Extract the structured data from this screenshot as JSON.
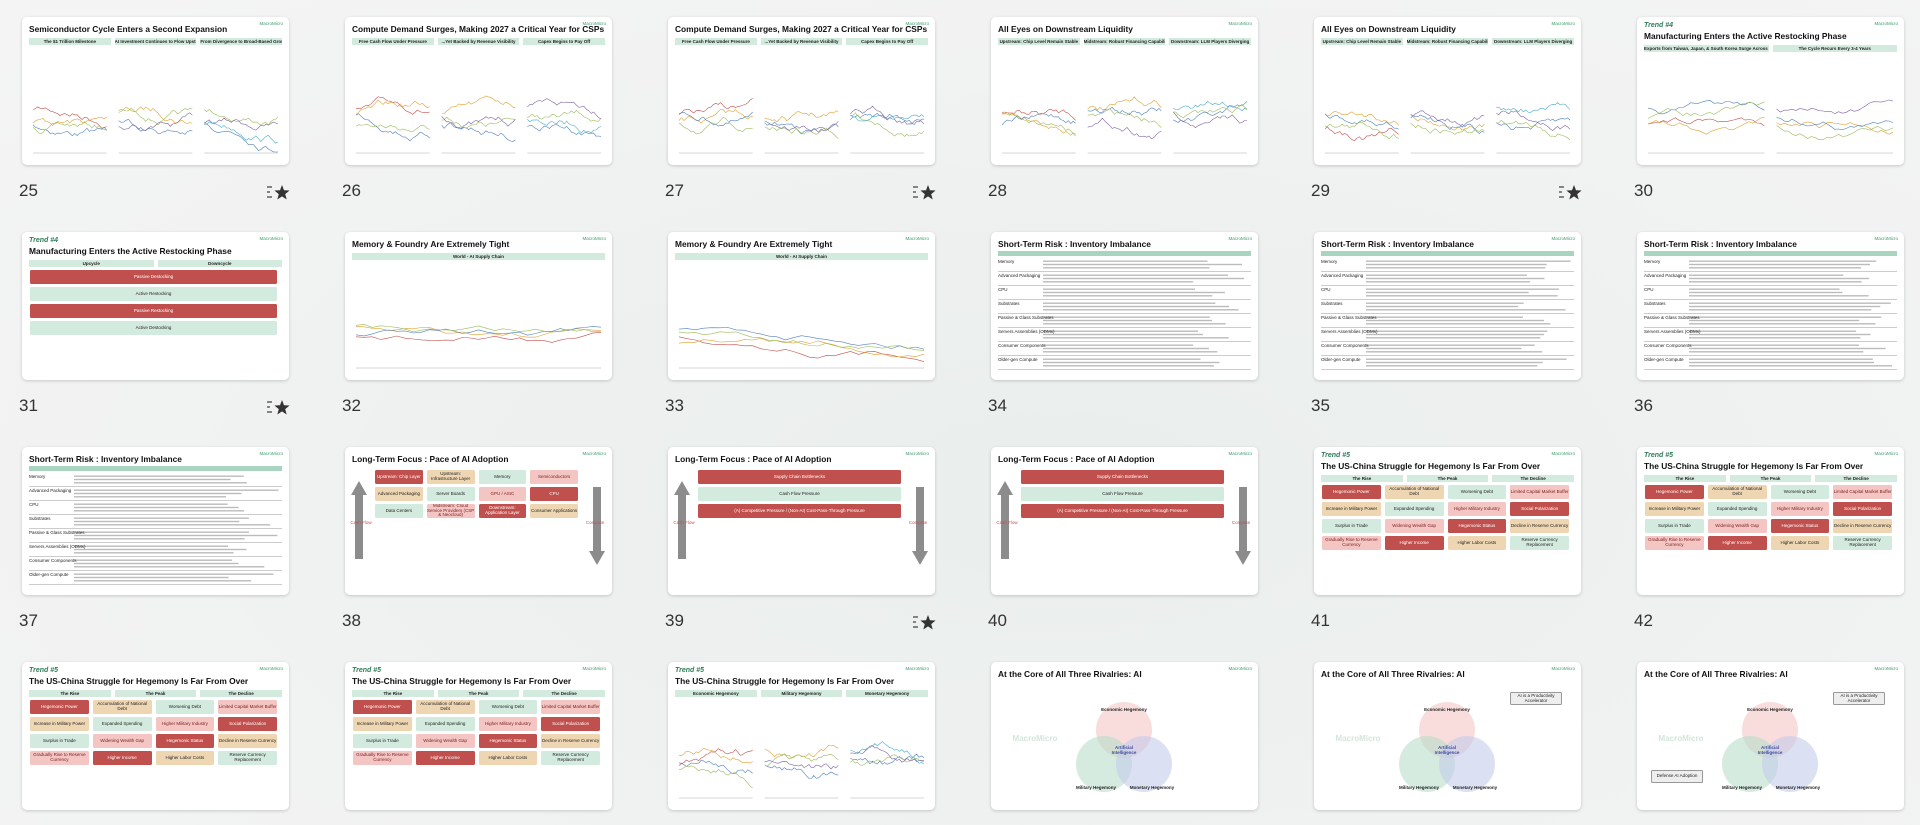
{
  "brand": "MacroMicro",
  "slides": [
    {
      "number": 25,
      "title": "Semiconductor Cycle Enters a Second Expansion",
      "panels": [
        "The $1 Trillion Milestone",
        "AI Investment Continues to Flow Upstream",
        "From Divergence to Broad-Based Growth"
      ],
      "starred": true
    },
    {
      "number": 26,
      "title": "Compute Demand Surges, Making 2027 a Critical Year for CSPs",
      "panels": [
        "Free Cash Flow Under Pressure",
        "...Yet Backed by Revenue Visibility",
        "Capex Begins to Pay Off"
      ]
    },
    {
      "number": 27,
      "title": "Compute Demand Surges, Making 2027 a Critical Year for CSPs",
      "panels": [
        "Free Cash Flow Under Pressure",
        "...Yet Backed by Revenue Visibility",
        "Capex Begins to Pay Off"
      ],
      "starred": true
    },
    {
      "number": 28,
      "title": "All Eyes on Downstream Liquidity",
      "panels": [
        "Upstream: Chip Level Remain Stable",
        "Midstream: Robust Financing Capability",
        "Downstream: LLM Players Diverging"
      ]
    },
    {
      "number": 29,
      "title": "All Eyes on Downstream Liquidity",
      "panels": [
        "Upstream: Chip Level Remain Stable",
        "Midstream: Robust Financing Capability",
        "Downstream: LLM Players Diverging"
      ],
      "starred": true
    },
    {
      "number": 30,
      "trend": "Trend #4",
      "title": "Manufacturing Enters the Active Restocking Phase",
      "panels": [
        "Exports from Taiwan, Japan, & South Korea Surge Across the Board",
        "The Cycle Recurs Every 3-4 Years"
      ]
    },
    {
      "number": 31,
      "trend": "Trend #4",
      "title": "Manufacturing Enters the Active Restocking Phase",
      "panels": [
        "Upcycle",
        "Downcycle"
      ],
      "labels": [
        "Passive Destocking",
        "Active Restocking",
        "Passive Restocking",
        "Active Destocking"
      ],
      "starred": true
    },
    {
      "number": 32,
      "title": "Memory & Foundry Are Extremely Tight",
      "panels": [
        "World - AI Supply Chain"
      ]
    },
    {
      "number": 33,
      "title": "Memory & Foundry Are Extremely Tight",
      "panels": [
        "World - AI Supply Chain"
      ]
    },
    {
      "number": 34,
      "title": "Short-Term Risk : Inventory Imbalance",
      "table_rows": [
        "Memory",
        "Advanced Packaging",
        "CPU",
        "Substrates",
        "Passive & Glass Substrates",
        "Servers Assemblies (ODMs)",
        "Consumer Components",
        "Older-gen Compute"
      ]
    },
    {
      "number": 35,
      "title": "Short-Term Risk : Inventory Imbalance",
      "table_rows": [
        "Memory",
        "Advanced Packaging",
        "CPU",
        "Substrates",
        "Passive & Glass Substrates",
        "Servers Assemblies (ODMs)",
        "Consumer Components",
        "Older-gen Compute"
      ]
    },
    {
      "number": 36,
      "title": "Short-Term Risk : Inventory Imbalance",
      "table_rows": [
        "Memory",
        "Advanced Packaging",
        "CPU",
        "Substrates",
        "Passive & Glass Substrates",
        "Servers Assemblies (ODMs)",
        "Consumer Components",
        "Older-gen Compute"
      ]
    },
    {
      "number": 37,
      "title": "Short-Term Risk : Inventory Imbalance",
      "table_rows": [
        "Memory",
        "Advanced Packaging",
        "CPU",
        "Substrates",
        "Passive & Glass Substrates",
        "Servers Assemblies (ODMs)",
        "Consumer Components",
        "Older-gen Compute"
      ]
    },
    {
      "number": 38,
      "title": "Long-Term Focus : Pace of AI Adoption",
      "labels": [
        "Upstream: Chip Layer",
        "Upstream: Infrastructure Layer",
        "Memory",
        "Semiconductors",
        "Advanced Packaging",
        "Server Boards",
        "GPU / ASIC",
        "CPU",
        "Data Centers",
        "Midstream: Cloud Service Providers (CSP & Neocloud)",
        "Downstream: Application Layer",
        "Consumer Applications"
      ],
      "side": [
        "Cash Flow",
        "Compute"
      ]
    },
    {
      "number": 39,
      "title": "Long-Term Focus : Pace of AI Adoption",
      "labels": [
        "Supply Chain Bottlenecks",
        "Cash Flow Pressure",
        "(A) Competitive Pressure / (Non-AI) Cost-Pass-Through Pressure"
      ],
      "side": [
        "Cash Flow",
        "Compute"
      ],
      "starred": true
    },
    {
      "number": 40,
      "title": "Long-Term Focus : Pace of AI Adoption",
      "labels": [
        "Supply Chain Bottlenecks",
        "Cash Flow Pressure",
        "(A) Competitive Pressure / (Non-AI) Cost-Pass-Through Pressure"
      ],
      "side": [
        "Cash Flow",
        "Compute"
      ]
    },
    {
      "number": 41,
      "trend": "Trend #5",
      "title": "The US-China Struggle for Hegemony Is Far From Over",
      "panels": [
        "The Rise",
        "The Peak",
        "The Decline"
      ],
      "labels": [
        "Hegemonic Power",
        "Accumulation of National Debt",
        "Worsening Debt",
        "Limited Capital Market Buffer",
        "Increase in Military Power",
        "Expanded Spending",
        "Higher Military Industry",
        "Social Polarization",
        "Surplus in Trade",
        "Widening Wealth Gap",
        "Hegemonic Status",
        "Decline in Reserve Currency",
        "Gradually Rise to Reserve Currency",
        "Higher Income",
        "Higher Labor Costs",
        "Reserve Currency Replacement"
      ]
    },
    {
      "number": 42,
      "trend": "Trend #5",
      "title": "The US-China Struggle for Hegemony Is Far From Over",
      "panels": [
        "The Rise",
        "The Peak",
        "The Decline"
      ],
      "labels": [
        "Hegemonic Power",
        "Accumulation of National Debt",
        "Worsening Debt",
        "Limited Capital Market Buffer",
        "Increase in Military Power",
        "Expanded Spending",
        "Higher Military Industry",
        "Social Polarization",
        "Surplus in Trade",
        "Widening Wealth Gap",
        "Hegemonic Status",
        "Decline in Reserve Currency",
        "Gradually Rise to Reserve Currency",
        "Higher Income",
        "Higher Labor Costs",
        "Reserve Currency Replacement"
      ]
    },
    {
      "trend": "Trend #5",
      "title": "The US-China Struggle for Hegemony Is Far From Over",
      "panels": [
        "The Rise",
        "The Peak",
        "The Decline"
      ],
      "labels": [
        "Hegemonic Power",
        "Accumulation of National Debt",
        "Worsening Debt",
        "Limited Capital Market Buffer",
        "Increase in Military Power",
        "Expanded Spending",
        "Higher Military Industry",
        "Social Polarization",
        "Surplus in Trade",
        "Widening Wealth Gap",
        "Hegemonic Status",
        "Decline in Reserve Currency",
        "Gradually Rise to Reserve Currency",
        "Higher Income",
        "Higher Labor Costs",
        "Reserve Currency Replacement"
      ]
    },
    {
      "trend": "Trend #5",
      "title": "The US-China Struggle for Hegemony Is Far From Over",
      "panels": [
        "The Rise",
        "The Peak",
        "The Decline"
      ],
      "labels": [
        "Hegemonic Power",
        "Accumulation of National Debt",
        "Worsening Debt",
        "Limited Capital Market Buffer",
        "Increase in Military Power",
        "Expanded Spending",
        "Higher Military Industry",
        "Social Polarization",
        "Surplus in Trade",
        "Widening Wealth Gap",
        "Hegemonic Status",
        "Decline in Reserve Currency",
        "Gradually Rise to Reserve Currency",
        "Higher Income",
        "Higher Labor Costs",
        "Reserve Currency Replacement"
      ]
    },
    {
      "trend": "Trend #5",
      "title": "The US-China Struggle for Hegemony Is Far From Over",
      "panels": [
        "Economic Hegemony",
        "Military Hegemony",
        "Monetary Hegemony"
      ]
    },
    {
      "title": "At the Core of All Three Rivalries: AI",
      "circles": [
        "Economic Hegemony",
        "Military Hegemony",
        "Monetary Hegemony"
      ],
      "center": "Artificial Intelligence"
    },
    {
      "title": "At the Core of All Three Rivalries: AI",
      "circles": [
        "Economic Hegemony",
        "Military Hegemony",
        "Monetary Hegemony"
      ],
      "center": "Artificial Intelligence",
      "callouts": [
        "AI is a Productivity Accelerator"
      ]
    },
    {
      "title": "At the Core of All Three Rivalries: AI",
      "circles": [
        "Economic Hegemony",
        "Military Hegemony",
        "Monetary Hegemony"
      ],
      "center": "Artificial Intelligence",
      "callouts": [
        "AI is a Productivity Accelerator",
        "Defense AI Adoption"
      ]
    }
  ]
}
